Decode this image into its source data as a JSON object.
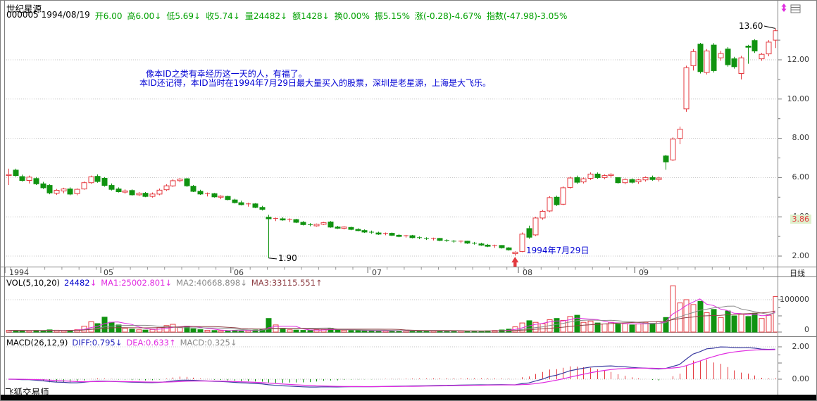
{
  "header": {
    "title": "世纪星源",
    "code_date": "000005 1994/08/19",
    "fields": {
      "open": "开6.00",
      "high": "高6.00↓",
      "low": "低5.69↓",
      "close": "收5.74↓",
      "volume": "量24482↓",
      "amount": "额1428↓",
      "turnover": "换0.00%",
      "amplitude": "振5.15%",
      "change": "涨(-0.28)-4.67%",
      "index": "指数(-47.98)-3.05%"
    }
  },
  "icons": {
    "updown": "price-updown-icon",
    "window": "window-layout-icon"
  },
  "main_chart": {
    "y_ticks": [
      "12.00",
      "10.00",
      "8.00",
      "6.00",
      "4.00",
      "2.00"
    ],
    "x_ticks": [
      "1994",
      "05",
      "06",
      "07",
      "08",
      "09"
    ],
    "period_label": "日线",
    "note_line1": "像本ID之类有幸经历这一天的人，有福了。",
    "note_line2": "本ID还记得，本ID当时在1994年7月29日最大量买入的股票，深圳是老星源，上海是大飞乐。",
    "high_label": "13.60",
    "low_label": "1.90",
    "event_label": "1994年7月29日",
    "price_marker": "3.86"
  },
  "vol_panel": {
    "title": "VOL(5,10,20)",
    "value": "24482",
    "value_arrow": "↓",
    "ma1": "MA1:25002.801↓",
    "ma2": "MA2:40668.898↓",
    "ma3": "MA3:33115.551↑",
    "y_ticks": [
      "100000",
      "0"
    ]
  },
  "macd_panel": {
    "title": "MACD(26,12,9)",
    "diff": "DIFF:0.795↓",
    "dea": "DEA:0.633↑",
    "macd": "MACD:0.325↓",
    "y_ticks": [
      "2.00",
      "0.00"
    ]
  },
  "footer": {
    "brand": "飞狐交易师"
  },
  "colors": {
    "up": "#e4393f",
    "down": "#109310",
    "info_green": "#00a000",
    "note_blue": "#0000d4",
    "value_blue": "#0000cc",
    "magenta": "#e02ce0",
    "ma2_gray": "#8a8a8a",
    "ma3_maroon": "#8f4046",
    "diff_blue": "#3a3aa0",
    "grid": "#c4c4c4",
    "frame": "#7f7f7f",
    "marker_red": "#e4393f",
    "marker_bg": "#dff0cd"
  },
  "chart_data": {
    "type": "candlestick",
    "title": "世纪星源 000005 日线",
    "panels": [
      "price",
      "volume",
      "macd"
    ],
    "ylim": [
      1.75,
      13.9
    ],
    "price_gridlines": [
      2,
      4,
      6,
      8,
      10,
      12
    ],
    "volume_gridline": 100000,
    "macd_gridlines": [
      0,
      2
    ],
    "high_value": 13.6,
    "low_value": 1.9,
    "marker_value": 3.86,
    "months": [
      {
        "label": "1994",
        "index": 0
      },
      {
        "label": "05",
        "index": 14
      },
      {
        "label": "06",
        "index": 33
      },
      {
        "label": "07",
        "index": 53
      },
      {
        "label": "08",
        "index": 75
      },
      {
        "label": "09",
        "index": 92
      }
    ],
    "crash_index": 38,
    "event_index": 74,
    "cursor_index": 89,
    "vol_ma_periods": [
      5,
      10,
      20
    ],
    "macd_params": [
      26,
      12,
      9
    ],
    "candles_ohlc": [
      [
        6.1,
        6.45,
        5.62,
        6.15
      ],
      [
        6.38,
        6.45,
        6.05,
        6.1
      ],
      [
        6.05,
        6.15,
        5.8,
        5.85
      ],
      [
        5.85,
        6.1,
        5.7,
        6.02
      ],
      [
        5.95,
        6.02,
        5.62,
        5.68
      ],
      [
        5.68,
        5.78,
        5.42,
        5.48
      ],
      [
        5.6,
        5.66,
        5.15,
        5.22
      ],
      [
        5.2,
        5.42,
        5.12,
        5.35
      ],
      [
        5.32,
        5.48,
        5.2,
        5.42
      ],
      [
        5.42,
        5.5,
        5.1,
        5.16
      ],
      [
        5.18,
        5.45,
        5.1,
        5.4
      ],
      [
        5.42,
        5.8,
        5.38,
        5.74
      ],
      [
        5.74,
        6.1,
        5.68,
        6.04
      ],
      [
        6.06,
        6.16,
        5.74,
        5.8
      ],
      [
        5.96,
        6.02,
        5.54,
        5.6
      ],
      [
        5.6,
        5.7,
        5.34,
        5.4
      ],
      [
        5.42,
        5.5,
        5.24,
        5.28
      ],
      [
        5.26,
        5.4,
        5.18,
        5.32
      ],
      [
        5.34,
        5.4,
        5.08,
        5.12
      ],
      [
        5.12,
        5.26,
        5.06,
        5.2
      ],
      [
        5.2,
        5.26,
        5.0,
        5.04
      ],
      [
        5.04,
        5.24,
        4.98,
        5.16
      ],
      [
        5.16,
        5.44,
        5.1,
        5.36
      ],
      [
        5.38,
        5.66,
        5.32,
        5.58
      ],
      [
        5.58,
        5.92,
        5.52,
        5.84
      ],
      [
        5.84,
        5.98,
        5.76,
        5.92
      ],
      [
        5.94,
        5.98,
        5.52,
        5.58
      ],
      [
        5.56,
        5.62,
        5.26,
        5.3
      ],
      [
        5.3,
        5.38,
        5.12,
        5.16
      ],
      [
        5.14,
        5.24,
        5.04,
        5.18
      ],
      [
        5.18,
        5.22,
        4.98,
        5.02
      ],
      [
        5.0,
        5.1,
        4.9,
        5.05
      ],
      [
        5.04,
        5.08,
        4.84,
        4.88
      ],
      [
        4.86,
        4.92,
        4.68,
        4.72
      ],
      [
        4.72,
        4.82,
        4.58,
        4.62
      ],
      [
        4.62,
        4.72,
        4.52,
        4.66
      ],
      [
        4.66,
        4.7,
        4.44,
        4.48
      ],
      [
        4.48,
        4.56,
        4.32,
        4.38
      ],
      [
        3.98,
        4.1,
        1.9,
        3.9
      ],
      [
        3.88,
        3.96,
        3.78,
        3.92
      ],
      [
        3.9,
        3.98,
        3.8,
        3.84
      ],
      [
        3.84,
        3.92,
        3.74,
        3.88
      ],
      [
        3.86,
        3.9,
        3.68,
        3.72
      ],
      [
        3.72,
        3.78,
        3.56,
        3.6
      ],
      [
        3.6,
        3.68,
        3.52,
        3.56
      ],
      [
        3.54,
        3.66,
        3.5,
        3.62
      ],
      [
        3.62,
        3.74,
        3.58,
        3.7
      ],
      [
        3.74,
        3.78,
        3.44,
        3.48
      ],
      [
        3.48,
        3.54,
        3.38,
        3.42
      ],
      [
        3.42,
        3.52,
        3.36,
        3.48
      ],
      [
        3.46,
        3.5,
        3.32,
        3.36
      ],
      [
        3.36,
        3.42,
        3.26,
        3.3
      ],
      [
        3.3,
        3.36,
        3.18,
        3.22
      ],
      [
        3.22,
        3.3,
        3.14,
        3.18
      ],
      [
        3.18,
        3.24,
        3.08,
        3.12
      ],
      [
        3.12,
        3.2,
        3.06,
        3.16
      ],
      [
        3.16,
        3.2,
        3.02,
        3.06
      ],
      [
        3.06,
        3.12,
        2.96,
        3.0
      ],
      [
        3.0,
        3.08,
        2.94,
        3.04
      ],
      [
        3.04,
        3.08,
        2.9,
        2.94
      ],
      [
        2.94,
        3.0,
        2.86,
        2.9
      ],
      [
        2.9,
        2.96,
        2.82,
        2.86
      ],
      [
        2.86,
        2.94,
        2.8,
        2.9
      ],
      [
        2.9,
        2.92,
        2.76,
        2.8
      ],
      [
        2.8,
        2.86,
        2.72,
        2.76
      ],
      [
        2.76,
        2.82,
        2.68,
        2.72
      ],
      [
        2.72,
        2.8,
        2.66,
        2.76
      ],
      [
        2.76,
        2.78,
        2.62,
        2.66
      ],
      [
        2.66,
        2.72,
        2.58,
        2.62
      ],
      [
        2.62,
        2.68,
        2.52,
        2.56
      ],
      [
        2.56,
        2.62,
        2.46,
        2.5
      ],
      [
        2.5,
        2.58,
        2.42,
        2.54
      ],
      [
        2.54,
        2.56,
        2.38,
        2.42
      ],
      [
        2.42,
        2.46,
        2.28,
        2.32
      ],
      [
        2.12,
        2.24,
        2.02,
        2.2
      ],
      [
        2.24,
        3.2,
        2.2,
        3.12
      ],
      [
        3.4,
        3.55,
        2.88,
        2.96
      ],
      [
        3.08,
        4.0,
        3.02,
        3.94
      ],
      [
        3.94,
        4.35,
        3.85,
        4.28
      ],
      [
        4.3,
        5.05,
        4.24,
        4.98
      ],
      [
        5.0,
        5.08,
        4.55,
        4.62
      ],
      [
        4.64,
        5.55,
        4.6,
        5.48
      ],
      [
        5.5,
        6.05,
        5.44,
        5.98
      ],
      [
        6.0,
        6.1,
        5.68,
        5.76
      ],
      [
        5.78,
        6.0,
        5.7,
        5.94
      ],
      [
        5.96,
        6.26,
        5.88,
        6.18
      ],
      [
        6.18,
        6.26,
        5.94,
        6.0
      ],
      [
        6.0,
        6.16,
        5.92,
        6.1
      ],
      [
        6.1,
        6.22,
        5.98,
        6.16
      ],
      [
        6.0,
        6.0,
        5.69,
        5.74
      ],
      [
        5.74,
        5.96,
        5.66,
        5.9
      ],
      [
        5.9,
        5.96,
        5.7,
        5.76
      ],
      [
        5.78,
        5.94,
        5.68,
        5.88
      ],
      [
        5.88,
        6.06,
        5.8,
        6.0
      ],
      [
        6.0,
        6.1,
        5.84,
        5.9
      ],
      [
        5.9,
        6.04,
        5.8,
        5.98
      ],
      [
        7.1,
        7.16,
        6.4,
        6.8
      ],
      [
        6.9,
        8.05,
        6.84,
        7.96
      ],
      [
        8.0,
        8.6,
        7.7,
        8.46
      ],
      [
        9.5,
        11.7,
        9.35,
        11.6
      ],
      [
        11.7,
        12.55,
        11.45,
        12.42
      ],
      [
        12.8,
        12.86,
        11.3,
        11.4
      ],
      [
        11.35,
        12.55,
        11.25,
        12.45
      ],
      [
        12.75,
        12.85,
        11.35,
        11.45
      ],
      [
        12.1,
        12.45,
        11.95,
        12.32
      ],
      [
        12.55,
        12.65,
        11.65,
        11.75
      ],
      [
        12.05,
        12.15,
        11.55,
        11.65
      ],
      [
        11.3,
        12.2,
        11.0,
        12.1
      ],
      [
        12.7,
        12.76,
        11.8,
        12.64
      ],
      [
        12.98,
        13.05,
        12.35,
        12.45
      ],
      [
        12.05,
        12.35,
        11.95,
        12.28
      ],
      [
        12.3,
        13.0,
        12.18,
        12.9
      ],
      [
        13.0,
        13.6,
        12.6,
        13.48
      ]
    ],
    "volumes": [
      5200,
      4800,
      4200,
      3800,
      5100,
      4400,
      6800,
      5600,
      4900,
      5300,
      7200,
      18000,
      32000,
      26000,
      46000,
      30000,
      22000,
      12000,
      9000,
      7000,
      6000,
      8000,
      14000,
      20000,
      24000,
      15000,
      18000,
      10000,
      7500,
      5200,
      4800,
      4200,
      3800,
      5200,
      4600,
      5000,
      6500,
      9000,
      42000,
      22000,
      9500,
      7000,
      6000,
      5200,
      4800,
      7400,
      8200,
      12000,
      6800,
      5600,
      4900,
      4300,
      3900,
      3600,
      3200,
      4100,
      3600,
      3000,
      4400,
      3800,
      3300,
      2900,
      3500,
      3100,
      2800,
      3000,
      3400,
      2700,
      3200,
      2900,
      3600,
      4800,
      6500,
      9000,
      16000,
      28000,
      35000,
      30000,
      26000,
      38000,
      42000,
      36000,
      48000,
      52000,
      30000,
      34000,
      28000,
      25000,
      30000,
      24482,
      26000,
      22000,
      25000,
      30000,
      27000,
      32000,
      45000,
      143000,
      90000,
      100000,
      85000,
      95000,
      60000,
      70000,
      45000,
      65000,
      50000,
      55000,
      48000,
      58000,
      42000,
      52000,
      110000
    ]
  }
}
